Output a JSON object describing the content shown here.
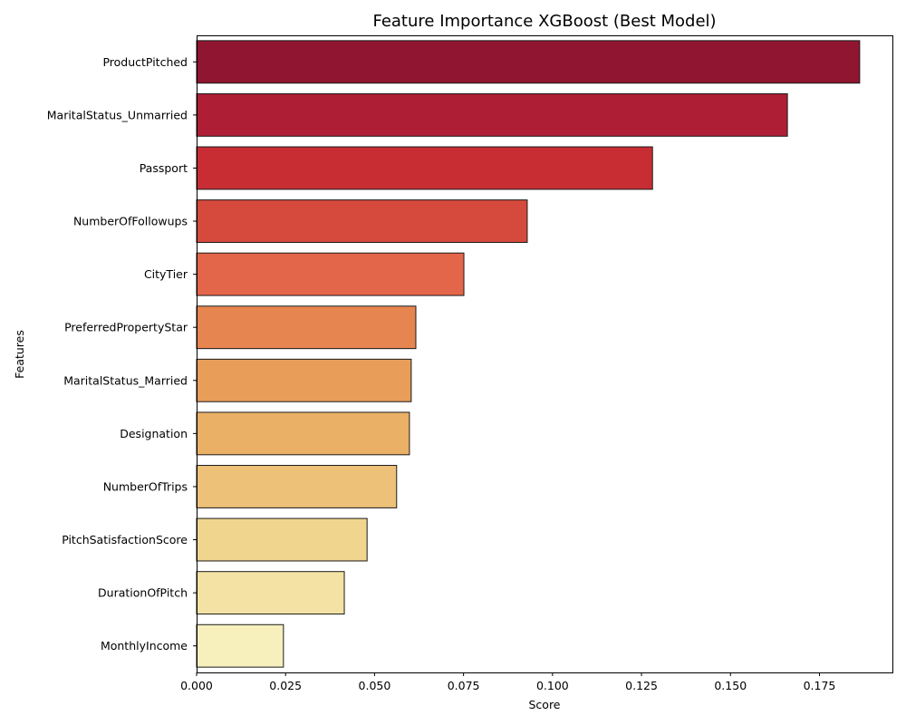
{
  "chart_data": {
    "type": "bar",
    "orientation": "horizontal",
    "title": "Feature Importance XGBoost (Best Model)",
    "xlabel": "Score",
    "ylabel": "Features",
    "xlim": [
      0,
      0.1955
    ],
    "xticks": [
      0.0,
      0.025,
      0.05,
      0.075,
      0.1,
      0.125,
      0.15,
      0.175
    ],
    "xtick_labels": [
      "0.000",
      "0.025",
      "0.050",
      "0.075",
      "0.100",
      "0.125",
      "0.150",
      "0.175"
    ],
    "grid": false,
    "legend": "none",
    "categories": [
      "ProductPitched",
      "MaritalStatus_Unmarried",
      "Passport",
      "NumberOfFollowups",
      "CityTier",
      "PreferredPropertyStar",
      "MaritalStatus_Married",
      "Designation",
      "NumberOfTrips",
      "PitchSatisfactionScore",
      "DurationOfPitch",
      "MonthlyIncome"
    ],
    "values": [
      0.1863,
      0.166,
      0.1281,
      0.0929,
      0.0751,
      0.0616,
      0.0603,
      0.0598,
      0.0562,
      0.0479,
      0.0415,
      0.0244
    ],
    "colors": [
      "#8f1530",
      "#ae1e34",
      "#c72d33",
      "#d54a3c",
      "#e4664a",
      "#e78550",
      "#e89e59",
      "#e9b066",
      "#eec178",
      "#f0d58e",
      "#f3e2a4",
      "#f7f0bd"
    ]
  }
}
